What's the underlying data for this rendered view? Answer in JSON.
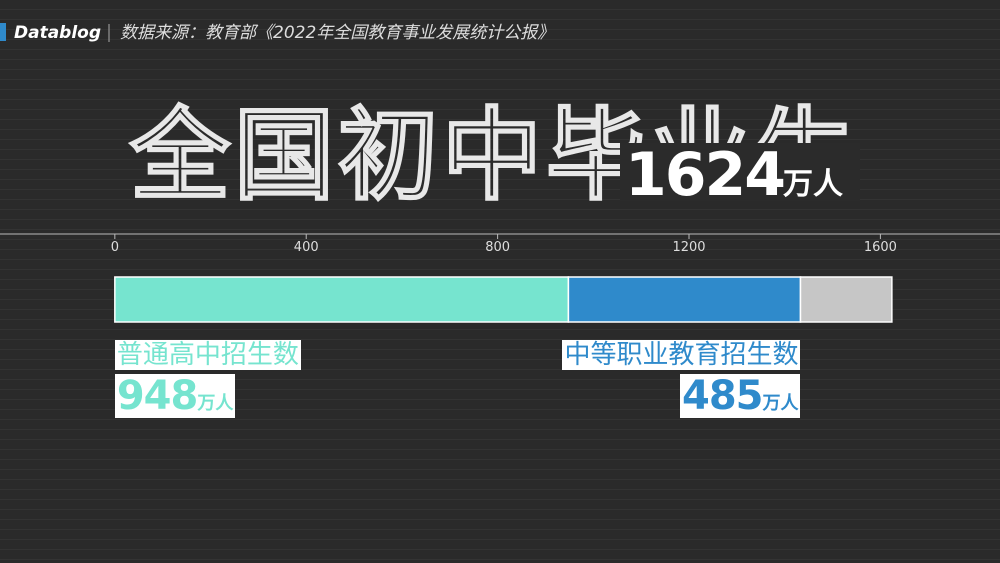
{
  "header": {
    "brand": "Datablog",
    "source": "数据来源：教育部《2022年全国教育事业发展统计公报》"
  },
  "chart_data": {
    "type": "stacked-bar",
    "title": "全国初中毕业生",
    "total": 1624,
    "unit": "万人",
    "xlim": [
      -240,
      1850
    ],
    "xticks": [
      0,
      400,
      800,
      1200,
      1600
    ],
    "series": [
      {
        "name": "普通高中招生数",
        "color": "#76e4cf",
        "values": [
          948
        ]
      },
      {
        "name": "中等职业教育招生数",
        "color": "#2f8acb",
        "values": [
          485
        ]
      },
      {
        "name": null,
        "color": "#c6c6c6",
        "values": [
          191
        ]
      }
    ]
  }
}
